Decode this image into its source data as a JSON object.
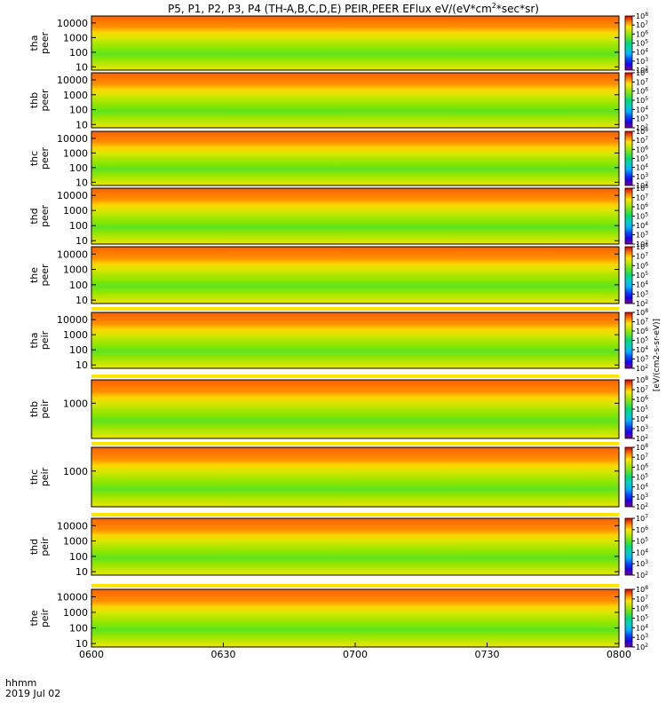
{
  "chart_data": {
    "type": "heatmap",
    "title": "P5, P1, P2, P3, P4 (TH-A,B,C,D,E) PEIR,PEER EFlux eV/(eV*cm",
    "title_sup": "2",
    "title_tail": "*sec*sr)",
    "x": {
      "ticks": [
        "0600",
        "0630",
        "0700",
        "0730",
        "0800"
      ],
      "range": [
        "06:00",
        "08:00"
      ],
      "label_line1": "hhmm",
      "label_line2": "2019 Jul 02"
    },
    "colorbar": {
      "label": "[eV/(cm2-s-sr-eV)]",
      "min_exp": 2,
      "max_exp": 8,
      "scale": "log"
    },
    "panels": [
      {
        "name": "tha peer",
        "line1": "tha",
        "line2": "peer",
        "ylim": [
          6,
          30000
        ],
        "yticks": [
          "10000",
          "1000",
          "100",
          "10"
        ],
        "cb_max": 8,
        "strip": false
      },
      {
        "name": "thb peer",
        "line1": "thb",
        "line2": "peer",
        "ylim": [
          6,
          30000
        ],
        "yticks": [
          "10000",
          "1000",
          "100",
          "10"
        ],
        "cb_max": 8,
        "strip": false
      },
      {
        "name": "thc peer",
        "line1": "thc",
        "line2": "peer",
        "ylim": [
          6,
          30000
        ],
        "yticks": [
          "10000",
          "1000",
          "100",
          "10"
        ],
        "cb_max": 8,
        "strip": false
      },
      {
        "name": "thd peer",
        "line1": "thd",
        "line2": "peer",
        "ylim": [
          6,
          30000
        ],
        "yticks": [
          "10000",
          "1000",
          "100",
          "10"
        ],
        "cb_max": 8,
        "strip": false
      },
      {
        "name": "the peer",
        "line1": "the",
        "line2": "peer",
        "ylim": [
          6,
          30000
        ],
        "yticks": [
          "10000",
          "1000",
          "100",
          "10"
        ],
        "cb_max": 8,
        "strip": false
      },
      {
        "name": "tha peir",
        "line1": "tha",
        "line2": "peir",
        "ylim": [
          6,
          30000
        ],
        "yticks": [
          "10000",
          "1000",
          "100",
          "10"
        ],
        "cb_max": 8,
        "strip": true
      },
      {
        "name": "thb peir",
        "line1": "thb",
        "line2": "peir",
        "ylim": [
          6,
          30000
        ],
        "yticks": [
          "1000"
        ],
        "cb_max": 8,
        "strip": true
      },
      {
        "name": "thc peir",
        "line1": "thc",
        "line2": "peir",
        "ylim": [
          6,
          30000
        ],
        "yticks": [
          "1000"
        ],
        "cb_max": 8,
        "strip": true
      },
      {
        "name": "thd peir",
        "line1": "thd",
        "line2": "peir",
        "ylim": [
          6,
          30000
        ],
        "yticks": [
          "10000",
          "1000",
          "100",
          "10"
        ],
        "cb_max": 7,
        "strip": true
      },
      {
        "name": "the peir",
        "line1": "the",
        "line2": "peir",
        "ylim": [
          6,
          30000
        ],
        "yticks": [
          "10000",
          "1000",
          "100",
          "10"
        ],
        "cb_max": 8,
        "strip": true
      }
    ]
  }
}
